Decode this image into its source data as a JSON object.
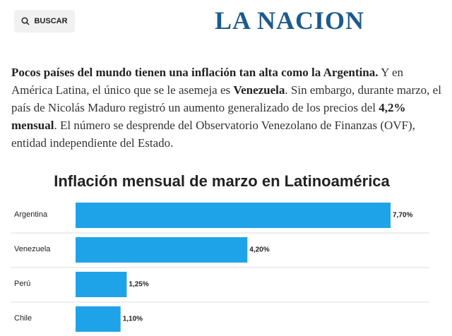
{
  "header": {
    "search_button": "BUSCAR",
    "logo": "LA NACION"
  },
  "article": {
    "paragraph": [
      {
        "text": "Pocos países del mundo tienen una inflación tan alta como la Argentina.",
        "bold": true
      },
      {
        "text": " Y en América Latina, el único que se le asemeja es ",
        "bold": false
      },
      {
        "text": "Venezuela",
        "bold": true
      },
      {
        "text": ". Sin embargo, durante marzo, el país de Nicolás Maduro registró un aumento generalizado de los precios del ",
        "bold": false
      },
      {
        "text": "4,2% mensual",
        "bold": true
      },
      {
        "text": ". El número se desprende del Observatorio Venezolano de Finanzas (OVF), entidad independiente del Estado.",
        "bold": false
      }
    ]
  },
  "chart_data": {
    "type": "bar",
    "orientation": "horizontal",
    "title": "Inflación mensual de marzo en Latinoamérica",
    "categories": [
      "Argentina",
      "Venezuela",
      "Perú",
      "Chile"
    ],
    "values": [
      7.7,
      4.2,
      1.25,
      1.1
    ],
    "value_labels": [
      "7,70%",
      "4,20%",
      "1,25%",
      "1,10%"
    ],
    "color": "#1fa3e8"
  }
}
